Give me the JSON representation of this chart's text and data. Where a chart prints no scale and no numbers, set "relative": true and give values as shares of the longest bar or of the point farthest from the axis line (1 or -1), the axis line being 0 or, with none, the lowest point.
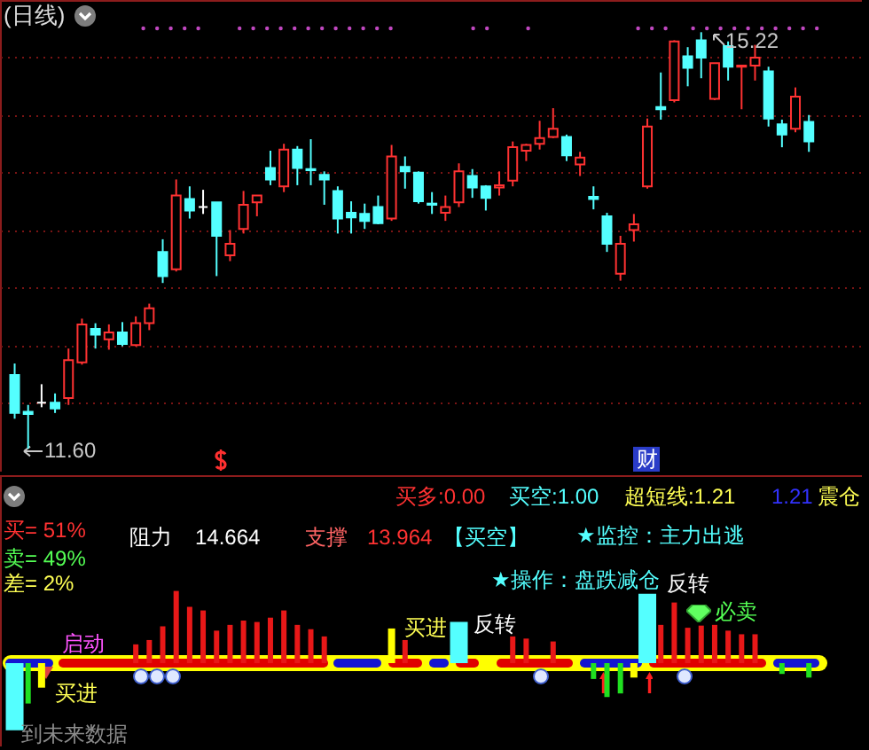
{
  "chart_data": [
    {
      "type": "candlestick",
      "title": "(日线)",
      "categories": [
        null,
        null,
        null,
        null,
        null,
        null,
        null,
        null,
        null,
        null,
        null,
        null,
        null,
        null,
        null,
        null,
        null,
        null,
        null,
        null,
        null,
        null,
        null,
        null,
        null,
        null,
        null,
        null,
        null,
        null,
        null,
        null,
        null,
        null,
        null,
        null,
        null,
        null,
        null,
        null,
        null,
        null,
        null,
        null,
        null,
        null,
        null,
        null,
        null,
        null,
        null,
        null,
        null,
        null,
        null,
        null,
        null,
        null,
        null,
        null
      ],
      "ohlc": [
        [
          12.24,
          12.34,
          11.86,
          11.91
        ],
        [
          11.92,
          11.98,
          11.6,
          11.9
        ],
        [
          12.0,
          12.16,
          11.96,
          12.0
        ],
        [
          12.0,
          12.08,
          11.91,
          11.95
        ],
        [
          12.04,
          12.47,
          11.98,
          12.37
        ],
        [
          12.35,
          12.73,
          12.33,
          12.68
        ],
        [
          12.64,
          12.69,
          12.47,
          12.59
        ],
        [
          12.55,
          12.68,
          12.46,
          12.61
        ],
        [
          12.61,
          12.7,
          12.49,
          12.51
        ],
        [
          12.5,
          12.75,
          12.49,
          12.69
        ],
        [
          12.69,
          12.86,
          12.63,
          12.82
        ],
        [
          13.31,
          13.42,
          13.04,
          13.1
        ],
        [
          13.16,
          13.94,
          13.14,
          13.8
        ],
        [
          13.77,
          13.88,
          13.6,
          13.67
        ],
        [
          13.7,
          13.85,
          13.64,
          13.7
        ],
        [
          13.74,
          13.74,
          13.1,
          13.45
        ],
        [
          13.28,
          13.5,
          13.23,
          13.38
        ],
        [
          13.51,
          13.84,
          13.47,
          13.72
        ],
        [
          13.74,
          13.8,
          13.62,
          13.8
        ],
        [
          14.04,
          14.19,
          13.89,
          13.94
        ],
        [
          13.88,
          14.25,
          13.83,
          14.2
        ],
        [
          14.2,
          14.23,
          13.89,
          14.04
        ],
        [
          14.03,
          14.29,
          13.89,
          14.02
        ],
        [
          13.98,
          14.01,
          13.72,
          13.94
        ],
        [
          13.84,
          13.88,
          13.47,
          13.6
        ],
        [
          13.65,
          13.75,
          13.47,
          13.61
        ],
        [
          13.64,
          13.73,
          13.51,
          13.58
        ],
        [
          13.7,
          13.8,
          13.55,
          13.56
        ],
        [
          13.6,
          14.24,
          13.58,
          14.14
        ],
        [
          14.05,
          14.14,
          13.86,
          14.01
        ],
        [
          14.0,
          14.01,
          13.73,
          13.75
        ],
        [
          13.73,
          13.83,
          13.64,
          13.72
        ],
        [
          13.65,
          13.8,
          13.58,
          13.7
        ],
        [
          13.74,
          14.08,
          13.7,
          14.01
        ],
        [
          13.97,
          14.03,
          13.78,
          13.87
        ],
        [
          13.88,
          13.89,
          13.67,
          13.78
        ],
        [
          13.87,
          14.01,
          13.8,
          13.89
        ],
        [
          13.93,
          14.27,
          13.88,
          14.22
        ],
        [
          14.19,
          14.25,
          14.1,
          14.24
        ],
        [
          14.25,
          14.45,
          14.2,
          14.3
        ],
        [
          14.31,
          14.56,
          14.3,
          14.38
        ],
        [
          14.31,
          14.33,
          14.1,
          14.15
        ],
        [
          14.07,
          14.18,
          13.97,
          14.13
        ],
        [
          13.79,
          13.88,
          13.68,
          13.77
        ],
        [
          13.62,
          13.65,
          13.31,
          13.38
        ],
        [
          13.12,
          13.45,
          13.06,
          13.38
        ],
        [
          13.5,
          13.64,
          13.4,
          13.55
        ],
        [
          13.88,
          14.47,
          13.86,
          14.4
        ],
        [
          14.57,
          14.87,
          14.46,
          14.55
        ],
        [
          14.63,
          15.15,
          14.61,
          15.14
        ],
        [
          15.01,
          15.09,
          14.75,
          14.91
        ],
        [
          15.15,
          15.22,
          14.82,
          15.0
        ],
        [
          14.64,
          14.95,
          14.63,
          14.95
        ],
        [
          15.1,
          15.14,
          14.8,
          14.92
        ],
        [
          14.92,
          14.93,
          14.55,
          14.93
        ],
        [
          14.93,
          15.11,
          14.8,
          15.0
        ],
        [
          14.88,
          14.92,
          14.4,
          14.47
        ],
        [
          14.42,
          14.46,
          14.22,
          14.33
        ],
        [
          14.38,
          14.74,
          14.35,
          14.66
        ],
        [
          14.44,
          14.5,
          14.18,
          14.27
        ]
      ],
      "colors": [
        "#54ffff",
        "#54ffff",
        "#ffffff",
        "#54ffff",
        "#ff3232",
        "#ff3232",
        "#54ffff",
        "#ff3232",
        "#54ffff",
        "#ff3232",
        "#ff3232",
        "#54ffff",
        "#ff3232",
        "#54ffff",
        "#ffffff",
        "#54ffff",
        "#ff3232",
        "#ff3232",
        "#ff3232",
        "#54ffff",
        "#ff3232",
        "#54ffff",
        "#54ffff",
        "#54ffff",
        "#54ffff",
        "#54ffff",
        "#54ffff",
        "#54ffff",
        "#ff3232",
        "#54ffff",
        "#54ffff",
        "#54ffff",
        "#ff3232",
        "#ff3232",
        "#54ffff",
        "#54ffff",
        "#ff3232",
        "#ff3232",
        "#ff3232",
        "#ff3232",
        "#ff3232",
        "#54ffff",
        "#ff3232",
        "#54ffff",
        "#54ffff",
        "#ff3232",
        "#ff3232",
        "#ff3232",
        "#54ffff",
        "#ff3232",
        "#54ffff",
        "#54ffff",
        "#ff3232",
        "#54ffff",
        "#ff3232",
        "#ff3232",
        "#54ffff",
        "#54ffff",
        "#ff3232",
        "#54ffff"
      ],
      "ylim": [
        11.4,
        15.5
      ],
      "yticks": [
        {
          "value": 12,
          "label": null
        },
        {
          "value": 12.5,
          "label": null
        },
        {
          "value": 13,
          "label": null
        },
        {
          "value": 13.5,
          "label": null
        },
        {
          "value": 14,
          "label": null
        },
        {
          "value": 14.5,
          "label": null
        },
        {
          "value": 15,
          "label": null
        }
      ],
      "grid": "y",
      "annotations": [
        "11.60",
        "15.22",
        "财"
      ]
    },
    {
      "type": "bar",
      "relative": true,
      "categories": [
        null,
        null,
        null,
        null,
        null,
        null,
        null,
        null,
        null,
        null,
        null,
        null,
        null,
        null,
        null,
        null,
        null,
        null,
        null,
        null,
        null,
        null,
        null,
        null,
        null,
        null,
        null,
        null,
        null,
        null,
        null,
        null,
        null,
        null,
        null,
        null,
        null,
        null,
        null,
        null,
        null,
        null,
        null,
        null,
        null,
        null,
        null,
        null,
        null,
        null,
        null,
        null,
        null,
        null,
        null,
        null,
        null,
        null,
        null,
        null
      ],
      "series": [
        {
          "color": "#e81818",
          "values": [
            null,
            null,
            null,
            null,
            null,
            null,
            null,
            null,
            null,
            0.26,
            0.32,
            0.51,
            1,
            0.78,
            0.73,
            0.45,
            0.53,
            0.59,
            0.57,
            0.63,
            0.73,
            0.53,
            0.47,
            0.37,
            null,
            null,
            null,
            null,
            null,
            0.32,
            null,
            null,
            null,
            null,
            null,
            null,
            null,
            0.37,
            0.34,
            null,
            0.3,
            null,
            null,
            null,
            null,
            null,
            null,
            null,
            0.53,
            0.84,
            0.49,
            0.52,
            0.53,
            0.45,
            0.4,
            0.4,
            null,
            null,
            null,
            null
          ]
        },
        {
          "color": "#54ffff",
          "values": [
            -0.93,
            null,
            null,
            null,
            null,
            null,
            null,
            null,
            null,
            null,
            null,
            null,
            null,
            null,
            null,
            null,
            null,
            null,
            null,
            null,
            null,
            null,
            null,
            null,
            null,
            null,
            null,
            null,
            null,
            null,
            null,
            null,
            null,
            0.57,
            null,
            null,
            null,
            null,
            null,
            null,
            null,
            null,
            null,
            null,
            null,
            null,
            null,
            0.96,
            null,
            null,
            null,
            null,
            null,
            null,
            null,
            null,
            null,
            null,
            null,
            null
          ]
        },
        {
          "color": "#ffff00",
          "values": [
            null,
            null,
            -0.34,
            null,
            null,
            null,
            null,
            null,
            null,
            null,
            null,
            null,
            null,
            null,
            null,
            null,
            null,
            null,
            null,
            null,
            null,
            null,
            null,
            null,
            null,
            null,
            null,
            null,
            0.48,
            null,
            null,
            null,
            null,
            null,
            null,
            null,
            null,
            null,
            null,
            null,
            null,
            null,
            null,
            null,
            null,
            null,
            -0.2,
            null,
            null,
            null,
            null,
            null,
            null,
            null,
            null,
            null,
            null,
            null,
            null,
            null
          ]
        },
        {
          "color": "#20e020",
          "values": [
            null,
            -0.56,
            null,
            null,
            null,
            null,
            null,
            null,
            null,
            null,
            null,
            null,
            null,
            null,
            null,
            null,
            null,
            null,
            null,
            null,
            null,
            null,
            null,
            null,
            null,
            null,
            null,
            null,
            null,
            null,
            null,
            null,
            null,
            null,
            null,
            null,
            null,
            null,
            null,
            null,
            null,
            null,
            null,
            -0.22,
            -0.47,
            -0.42,
            null,
            null,
            null,
            null,
            null,
            null,
            null,
            null,
            null,
            null,
            null,
            -0.15,
            null,
            -0.2
          ]
        }
      ],
      "annotations": [
        "买多:0.00",
        "买空:1.00",
        "超短线:1.21",
        "1.21",
        "震仓",
        "买= 51%",
        "阻力",
        "14.664",
        "支撑",
        "13.964",
        "【买空】",
        "★监控：主力出逃",
        "卖= 49%",
        "差= 2%",
        "★操作：盘跌减仓",
        "反转",
        "反转",
        "买进",
        "必卖",
        "启动",
        "买进",
        "到未来数据"
      ]
    }
  ]
}
